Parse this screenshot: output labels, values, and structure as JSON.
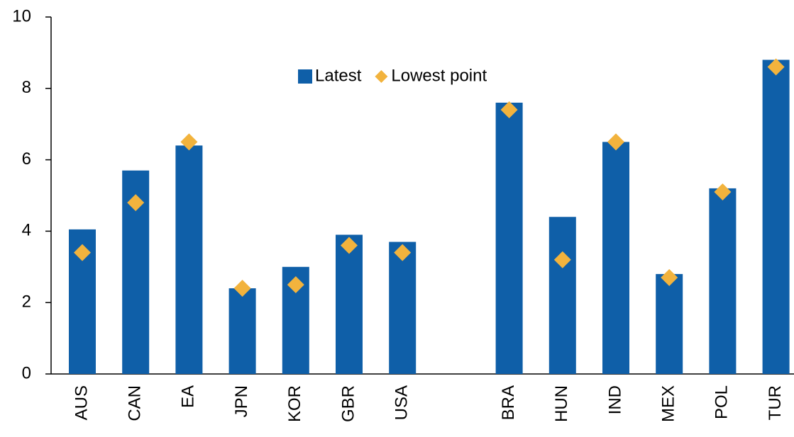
{
  "chart_data": {
    "type": "bar",
    "categories": [
      "AUS",
      "CAN",
      "EA",
      "JPN",
      "KOR",
      "GBR",
      "USA",
      null,
      "BRA",
      "HUN",
      "IND",
      "MEX",
      "POL",
      "TUR"
    ],
    "series": [
      {
        "name": "Latest",
        "type": "bar",
        "color": "#0f5fa8",
        "values": [
          4.05,
          5.7,
          6.4,
          2.4,
          3.0,
          3.9,
          3.7,
          null,
          7.6,
          4.4,
          6.5,
          2.8,
          5.2,
          8.8
        ]
      },
      {
        "name": "Lowest point",
        "type": "scatter",
        "color": "#f2b33d",
        "values": [
          3.4,
          4.8,
          6.5,
          2.4,
          2.5,
          3.6,
          3.4,
          null,
          7.4,
          3.2,
          6.5,
          2.7,
          5.1,
          8.6
        ]
      }
    ],
    "ylim": [
      0,
      10
    ],
    "yticks": [
      0,
      2,
      4,
      6,
      8,
      10
    ],
    "legend": "top-center"
  }
}
